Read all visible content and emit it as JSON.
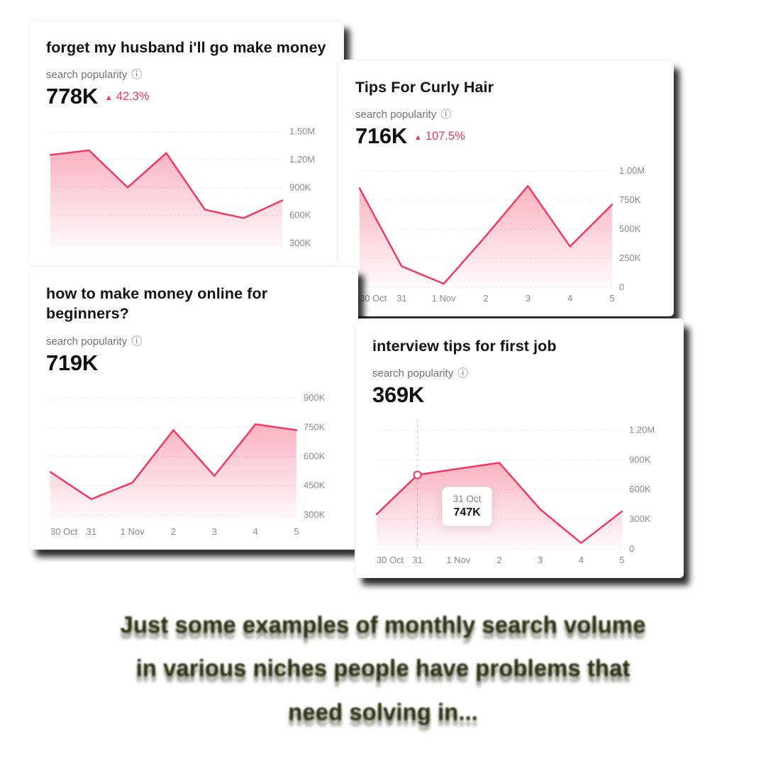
{
  "colors": {
    "accent": "#F2355B",
    "axis_label": "#8a8b93",
    "grid": "#e9e9ec",
    "tooltip_guide": "#c8c8ce"
  },
  "icons": {
    "info": "ⓘ",
    "up_triangle": "▲"
  },
  "caption": {
    "lines": [
      "Just some examples of monthly search volume",
      "in various niches people have problems that",
      "need solving in..."
    ]
  },
  "cards": [
    {
      "title": "forget my husband i'll go make money",
      "metric_label": "search popularity",
      "value": "778K",
      "change": "42.3%"
    },
    {
      "title": "Tips For Curly Hair",
      "metric_label": "search popularity",
      "value": "716K",
      "change": "107.5%"
    },
    {
      "title": "how to make money online for beginners?",
      "metric_label": "search popularity",
      "value": "719K"
    },
    {
      "title": "interview tips for first job",
      "metric_label": "search popularity",
      "value": "369K"
    }
  ],
  "chart_data": [
    {
      "type": "line",
      "title": "forget my husband i'll go make money",
      "categories": [],
      "values": [
        1250000,
        1300000,
        900000,
        1270000,
        660000,
        570000,
        760000
      ],
      "yticks": [
        "1.50M",
        "1.20M",
        "900K",
        "600K",
        "300K"
      ],
      "ytick_values": [
        1500000,
        1200000,
        900000,
        600000,
        300000
      ],
      "ylim": [
        230000,
        1620000
      ],
      "grid": true,
      "legend": false
    },
    {
      "type": "line",
      "title": "Tips For Curly Hair",
      "categories": [
        "30 Oct",
        "31",
        "1 Nov",
        "2",
        "3",
        "4",
        "5"
      ],
      "values": [
        850000,
        180000,
        30000,
        440000,
        870000,
        350000,
        710000
      ],
      "yticks": [
        "1.00M",
        "750K",
        "500K",
        "250K",
        "0"
      ],
      "ytick_values": [
        1000000,
        750000,
        500000,
        250000,
        0
      ],
      "ylim": [
        0,
        1090000
      ],
      "grid": true,
      "legend": false
    },
    {
      "type": "line",
      "title": "how to make money online for beginners?",
      "categories": [
        "30 Oct",
        "31",
        "1 Nov",
        "2",
        "3",
        "4",
        "5"
      ],
      "values": [
        520000,
        380000,
        465000,
        735000,
        500000,
        765000,
        735000
      ],
      "yticks": [
        "900K",
        "750K",
        "600K",
        "450K",
        "300K"
      ],
      "ytick_values": [
        900000,
        750000,
        600000,
        450000,
        300000
      ],
      "ylim": [
        270000,
        955000
      ],
      "grid": true,
      "legend": false
    },
    {
      "type": "line",
      "title": "interview tips for first job",
      "categories": [
        "30 Oct",
        "31",
        "1 Nov",
        "2",
        "3",
        "4",
        "5"
      ],
      "values": [
        350000,
        747000,
        810000,
        870000,
        400000,
        60000,
        380000
      ],
      "yticks": [
        "1.20M",
        "900K",
        "600K",
        "300K",
        "0"
      ],
      "ytick_values": [
        1200000,
        900000,
        600000,
        300000,
        0
      ],
      "ylim": [
        0,
        1310000
      ],
      "grid": true,
      "legend": false,
      "tooltip": {
        "index": 1,
        "label": "31 Oct",
        "value": "747K"
      }
    }
  ]
}
